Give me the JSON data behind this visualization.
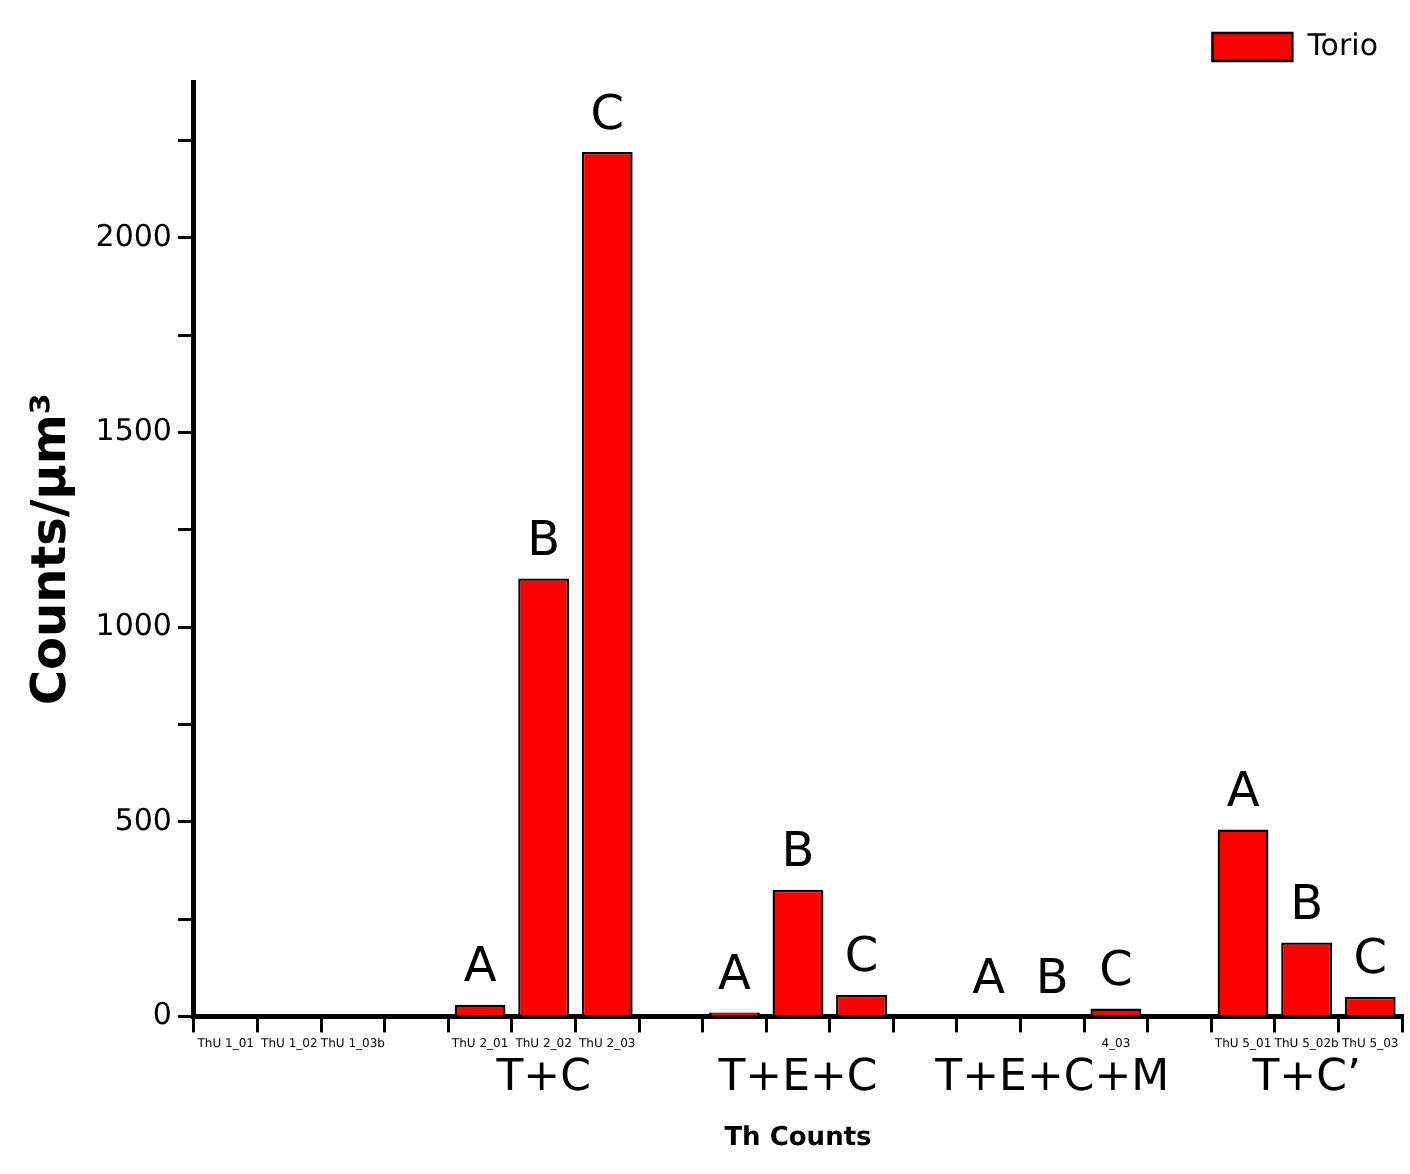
{
  "chart_data": {
    "type": "bar",
    "xlabel": "Th Counts",
    "ylabel": "Counts/μm³",
    "categories": [
      "ThU 1_01",
      "ThU 1_02",
      "ThU 1_03b",
      null,
      "ThU 2_01",
      "ThU 2_02",
      "ThU 2_03",
      null,
      null,
      null,
      null,
      null,
      null,
      null,
      "4_03",
      null,
      "ThU 5_01",
      "ThU 5_02b",
      "ThU 5_03"
    ],
    "series": [
      {
        "name": "Torio",
        "color": "#ff0000",
        "values": [
          0,
          0,
          0,
          null,
          30,
          1125,
          2220,
          null,
          10,
          325,
          55,
          null,
          0,
          0,
          20,
          null,
          480,
          190,
          50
        ],
        "value_labels": [
          null,
          null,
          null,
          null,
          "A",
          "B",
          "C",
          null,
          "A",
          "B",
          "C",
          null,
          "A",
          "B",
          "C",
          null,
          "A",
          "B",
          "C"
        ]
      }
    ],
    "ylim": [
      0,
      2400
    ],
    "yticks": [
      0,
      {
        "value": 250,
        "label": null
      },
      500,
      {
        "value": 750,
        "label": null
      },
      1000,
      {
        "value": 1250,
        "label": null
      },
      1500,
      {
        "value": 1750,
        "label": null
      },
      2000,
      {
        "value": 2250,
        "label": null
      }
    ],
    "annotations": [
      "T+C",
      "T+E+C",
      "T+E+C+M",
      "T+C’"
    ],
    "legend": "top right",
    "grid": false
  }
}
